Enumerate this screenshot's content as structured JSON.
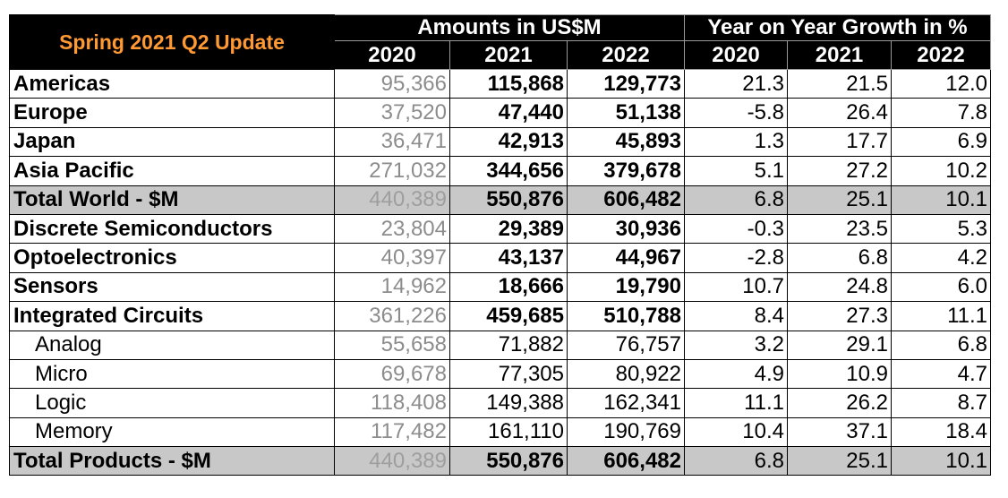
{
  "header": {
    "title": "Spring 2021 Q2 Update",
    "group_amounts": "Amounts in US$M",
    "group_growth": "Year on Year Growth in %",
    "years": [
      "2020",
      "2021",
      "2022",
      "2020",
      "2021",
      "2022"
    ]
  },
  "rows": [
    {
      "label": "Americas",
      "a2020": "95,366",
      "a2021": "115,868",
      "a2022": "129,773",
      "g2020": "21.3",
      "g2021": "21.5",
      "g2022": "12.0",
      "kind": "main"
    },
    {
      "label": "Europe",
      "a2020": "37,520",
      "a2021": "47,440",
      "a2022": "51,138",
      "g2020": "-5.8",
      "g2021": "26.4",
      "g2022": "7.8",
      "kind": "main"
    },
    {
      "label": "Japan",
      "a2020": "36,471",
      "a2021": "42,913",
      "a2022": "45,893",
      "g2020": "1.3",
      "g2021": "17.7",
      "g2022": "6.9",
      "kind": "main"
    },
    {
      "label": "Asia Pacific",
      "a2020": "271,032",
      "a2021": "344,656",
      "a2022": "379,678",
      "g2020": "5.1",
      "g2021": "27.2",
      "g2022": "10.2",
      "kind": "main"
    },
    {
      "label": "Total World - $M",
      "a2020": "440,389",
      "a2021": "550,876",
      "a2022": "606,482",
      "g2020": "6.8",
      "g2021": "25.1",
      "g2022": "10.1",
      "kind": "total"
    },
    {
      "label": "Discrete Semiconductors",
      "a2020": "23,804",
      "a2021": "29,389",
      "a2022": "30,936",
      "g2020": "-0.3",
      "g2021": "23.5",
      "g2022": "5.3",
      "kind": "main"
    },
    {
      "label": "Optoelectronics",
      "a2020": "40,397",
      "a2021": "43,137",
      "a2022": "44,967",
      "g2020": "-2.8",
      "g2021": "6.8",
      "g2022": "4.2",
      "kind": "main"
    },
    {
      "label": "Sensors",
      "a2020": "14,962",
      "a2021": "18,666",
      "a2022": "19,790",
      "g2020": "10.7",
      "g2021": "24.8",
      "g2022": "6.0",
      "kind": "main"
    },
    {
      "label": "Integrated Circuits",
      "a2020": "361,226",
      "a2021": "459,685",
      "a2022": "510,788",
      "g2020": "8.4",
      "g2021": "27.3",
      "g2022": "11.1",
      "kind": "main"
    },
    {
      "label": "Analog",
      "a2020": "55,658",
      "a2021": "71,882",
      "a2022": "76,757",
      "g2020": "3.2",
      "g2021": "29.1",
      "g2022": "6.8",
      "kind": "sub"
    },
    {
      "label": "Micro",
      "a2020": "69,678",
      "a2021": "77,305",
      "a2022": "80,922",
      "g2020": "4.9",
      "g2021": "10.9",
      "g2022": "4.7",
      "kind": "sub"
    },
    {
      "label": "Logic",
      "a2020": "118,408",
      "a2021": "149,388",
      "a2022": "162,341",
      "g2020": "11.1",
      "g2021": "26.2",
      "g2022": "8.7",
      "kind": "sub"
    },
    {
      "label": "Memory",
      "a2020": "117,482",
      "a2021": "161,110",
      "a2022": "190,769",
      "g2020": "10.4",
      "g2021": "37.1",
      "g2022": "18.4",
      "kind": "sub"
    },
    {
      "label": "Total Products - $M",
      "a2020": "440,389",
      "a2021": "550,876",
      "a2022": "606,482",
      "g2020": "6.8",
      "g2021": "25.1",
      "g2022": "10.1",
      "kind": "total"
    }
  ],
  "colors": {
    "title": "#ff9933",
    "header_bg": "#000000",
    "total_bg": "#c8c8c8",
    "muted_text": "#8c8c8c"
  }
}
